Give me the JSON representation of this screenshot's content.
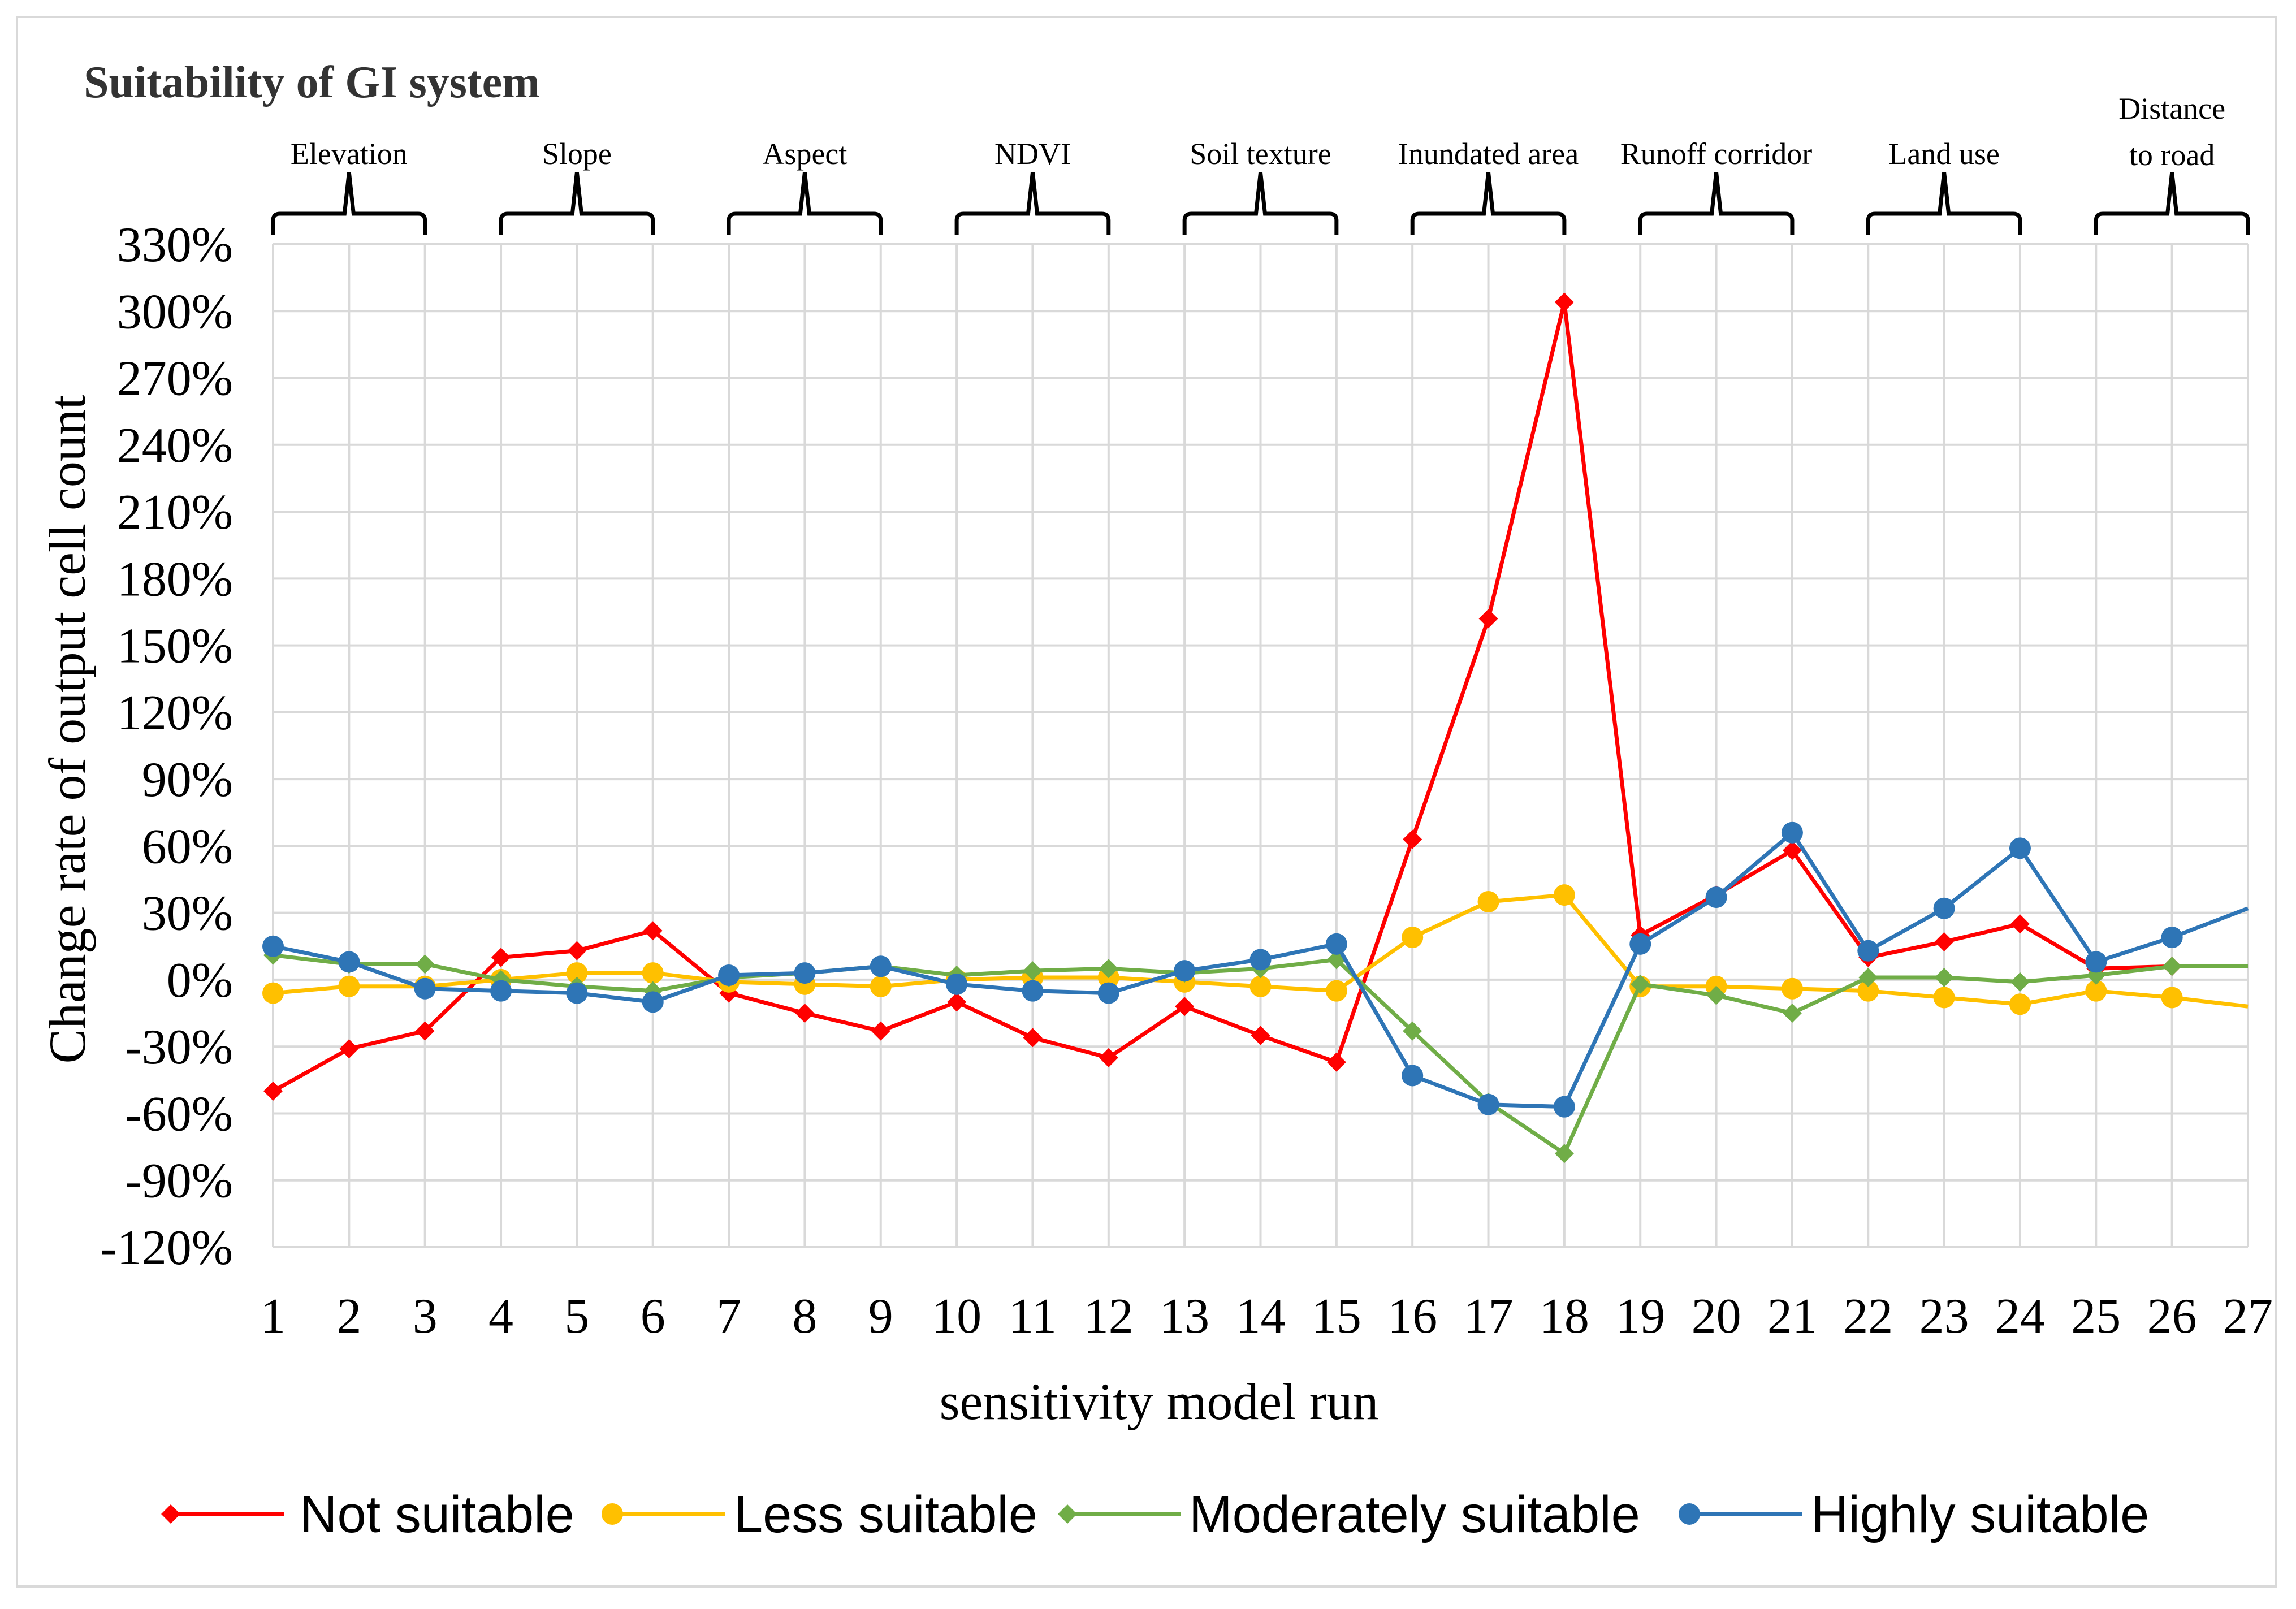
{
  "chart_data": {
    "type": "line",
    "title": "Suitability of GI system",
    "xlabel": "sensitivity model run",
    "ylabel": "Change rate of output cell count",
    "x": [
      1,
      2,
      3,
      4,
      5,
      6,
      7,
      8,
      9,
      10,
      11,
      12,
      13,
      14,
      15,
      16,
      17,
      18,
      19,
      20,
      21,
      22,
      23,
      24,
      25,
      26,
      27
    ],
    "ylim": [
      -120,
      330
    ],
    "yticks": [
      330,
      300,
      270,
      240,
      210,
      180,
      150,
      120,
      90,
      60,
      30,
      0,
      -30,
      -60,
      -90,
      -120
    ],
    "ytick_labels": [
      "330%",
      "300%",
      "270%",
      "240%",
      "210%",
      "180%",
      "150%",
      "120%",
      "90%",
      "60%",
      "30%",
      "0%",
      "-30%",
      "-60%",
      "-90%",
      "-120%"
    ],
    "grid": true,
    "legend_position": "bottom",
    "groups": [
      {
        "label": "Elevation",
        "runs": [
          1,
          3
        ]
      },
      {
        "label": "Slope",
        "runs": [
          4,
          6
        ]
      },
      {
        "label": "Aspect",
        "runs": [
          7,
          9
        ]
      },
      {
        "label": "NDVI",
        "runs": [
          10,
          12
        ]
      },
      {
        "label": "Soil texture",
        "runs": [
          13,
          15
        ]
      },
      {
        "label": "Inundated area",
        "runs": [
          16,
          18
        ]
      },
      {
        "label": "Runoff corridor",
        "runs": [
          19,
          21
        ]
      },
      {
        "label": "Land use",
        "runs": [
          22,
          24
        ]
      },
      {
        "label": "Distance to road",
        "label_lines": [
          "Distance",
          "to road"
        ],
        "runs": [
          25,
          27
        ]
      }
    ],
    "series": [
      {
        "name": "Not suitable",
        "color": "#ff0000",
        "marker": "diamond",
        "values": [
          -50,
          -31,
          -23,
          10,
          13,
          22,
          -6,
          -15,
          -23,
          -10,
          -26,
          -35,
          -12,
          -25,
          -37,
          63,
          162,
          304,
          20,
          38,
          58,
          10,
          17,
          25,
          5,
          6,
          6
        ]
      },
      {
        "name": "Less suitable",
        "color": "#ffc000",
        "marker": "circle",
        "values": [
          -6,
          -3,
          -3,
          0,
          3,
          3,
          -1,
          -2,
          -3,
          0,
          1,
          1,
          -1,
          -3,
          -5,
          19,
          35,
          38,
          -3,
          -3,
          -4,
          -5,
          -8,
          -11,
          -5,
          -8,
          -12
        ]
      },
      {
        "name": "Moderately suitable",
        "color": "#70ad47",
        "marker": "diamond",
        "values": [
          11,
          7,
          7,
          0,
          -3,
          -5,
          1,
          3,
          6,
          2,
          4,
          5,
          3,
          5,
          9,
          -23,
          -55,
          -78,
          -2,
          -7,
          -15,
          1,
          1,
          -1,
          2,
          6,
          6
        ]
      },
      {
        "name": "Highly suitable",
        "color": "#2e75b6",
        "marker": "circle",
        "values": [
          15,
          8,
          -4,
          -5,
          -6,
          -10,
          2,
          3,
          6,
          -2,
          -5,
          -6,
          4,
          9,
          16,
          -43,
          -56,
          -57,
          16,
          37,
          66,
          13,
          32,
          59,
          8,
          19,
          32
        ]
      }
    ]
  }
}
